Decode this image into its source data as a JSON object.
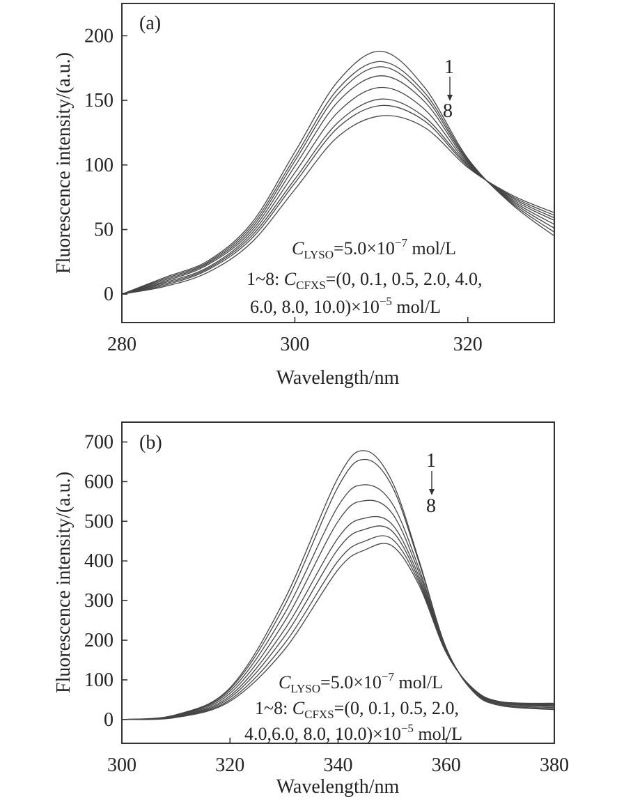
{
  "chart_data": [
    {
      "type": "line",
      "panel_label": "(a)",
      "xlabel": "Wavelength/nm",
      "ylabel": "Fluorescence intensity/(a.u.)",
      "xlim": [
        280,
        330
      ],
      "ylim": [
        -22,
        225
      ],
      "xticks": [
        280,
        300,
        320
      ],
      "yticks": [
        0,
        50,
        100,
        150,
        200
      ],
      "grid": false,
      "series_label_top": "1",
      "series_label_bottom": "8",
      "annotation": {
        "line1": {
          "main": "C",
          "sub": "LYSO",
          "text": "=5.0×10",
          "sup": "−7",
          "unit": " mol/L"
        },
        "line2": {
          "prefix": "1~8: ",
          "main": "C",
          "sub": "CFXS",
          "text": "=(0, 0.1, 0.5, 2.0, 4.0,"
        },
        "line3": {
          "text": "6.0, 8.0, 10.0)×10",
          "sup": "−5",
          "unit": " mol/L"
        }
      },
      "series": [
        {
          "values": [
            [
              280,
              0
            ],
            [
              285,
              13
            ],
            [
              290,
              26
            ],
            [
              295,
              55
            ],
            [
              300,
              110
            ],
            [
              305,
              165
            ],
            [
              310,
              188
            ],
            [
              315,
              160
            ],
            [
              320,
              105
            ],
            [
              325,
              70
            ],
            [
              330,
              45
            ]
          ]
        },
        {
          "values": [
            [
              280,
              0
            ],
            [
              285,
              12
            ],
            [
              290,
              25
            ],
            [
              295,
              53
            ],
            [
              300,
              106
            ],
            [
              305,
              159
            ],
            [
              310,
              180
            ],
            [
              315,
              156
            ],
            [
              320,
              104
            ],
            [
              325,
              71
            ],
            [
              330,
              48
            ]
          ]
        },
        {
          "values": [
            [
              280,
              0
            ],
            [
              285,
              11
            ],
            [
              290,
              24
            ],
            [
              295,
              51
            ],
            [
              300,
              103
            ],
            [
              305,
              155
            ],
            [
              310,
              176
            ],
            [
              315,
              153
            ],
            [
              320,
              103
            ],
            [
              325,
              72
            ],
            [
              330,
              51
            ]
          ]
        },
        {
          "values": [
            [
              280,
              0
            ],
            [
              285,
              10
            ],
            [
              290,
              23
            ],
            [
              295,
              49
            ],
            [
              300,
              99
            ],
            [
              305,
              149
            ],
            [
              310,
              169
            ],
            [
              315,
              149
            ],
            [
              320,
              102
            ],
            [
              325,
              73
            ],
            [
              330,
              54
            ]
          ]
        },
        {
          "values": [
            [
              280,
              0
            ],
            [
              285,
              9
            ],
            [
              290,
              21
            ],
            [
              295,
              47
            ],
            [
              300,
              94
            ],
            [
              305,
              141
            ],
            [
              310,
              160
            ],
            [
              315,
              143
            ],
            [
              320,
              101
            ],
            [
              325,
              74
            ],
            [
              330,
              57
            ]
          ]
        },
        {
          "values": [
            [
              280,
              0
            ],
            [
              285,
              8
            ],
            [
              290,
              20
            ],
            [
              295,
              45
            ],
            [
              300,
              89
            ],
            [
              305,
              133
            ],
            [
              310,
              151
            ],
            [
              315,
              137
            ],
            [
              320,
              100
            ],
            [
              325,
              75
            ],
            [
              330,
              59
            ]
          ]
        },
        {
          "values": [
            [
              280,
              0
            ],
            [
              285,
              7
            ],
            [
              290,
              19
            ],
            [
              295,
              43
            ],
            [
              300,
              86
            ],
            [
              305,
              129
            ],
            [
              310,
              146
            ],
            [
              315,
              134
            ],
            [
              320,
              99
            ],
            [
              325,
              76
            ],
            [
              330,
              61
            ]
          ]
        },
        {
          "values": [
            [
              280,
              0
            ],
            [
              285,
              6
            ],
            [
              290,
              17
            ],
            [
              295,
              40
            ],
            [
              300,
              81
            ],
            [
              305,
              122
            ],
            [
              310,
              138
            ],
            [
              315,
              129
            ],
            [
              320,
              98
            ],
            [
              325,
              77
            ],
            [
              330,
              63
            ]
          ]
        }
      ]
    },
    {
      "type": "line",
      "panel_label": "(b)",
      "xlabel": "Wavelength/nm",
      "ylabel": "Fluorescence intensity/(a.u.)",
      "xlim": [
        300,
        380
      ],
      "ylim": [
        -60,
        750
      ],
      "xticks": [
        300,
        320,
        340,
        360,
        380
      ],
      "yticks": [
        0,
        100,
        200,
        300,
        400,
        500,
        600,
        700
      ],
      "grid": false,
      "series_label_top": "1",
      "series_label_bottom": "8",
      "annotation": {
        "line1": {
          "main": "C",
          "sub": "LYSO",
          "text": "=5.0×10",
          "sup": "−7",
          "unit": " mol/L"
        },
        "line2": {
          "prefix": "1~8: ",
          "main": "C",
          "sub": "CFXS",
          "text": "=(0, 0.1, 0.5, 2.0,"
        },
        "line3": {
          "text": "4.0,6.0, 8.0, 10.0)×10",
          "sup": "−5",
          "unit": " mol/L"
        }
      },
      "series": [
        {
          "values": [
            [
              300,
              0
            ],
            [
              310,
              12
            ],
            [
              320,
              80
            ],
            [
              330,
              300
            ],
            [
              340,
              610
            ],
            [
              345,
              678
            ],
            [
              350,
              600
            ],
            [
              355,
              400
            ],
            [
              360,
              180
            ],
            [
              365,
              70
            ],
            [
              370,
              35
            ],
            [
              380,
              25
            ]
          ]
        },
        {
          "values": [
            [
              300,
              0
            ],
            [
              310,
              11
            ],
            [
              320,
              77
            ],
            [
              330,
              285
            ],
            [
              340,
              587
            ],
            [
              345,
              656
            ],
            [
              350,
              588
            ],
            [
              355,
              395
            ],
            [
              360,
              180
            ],
            [
              365,
              72
            ],
            [
              370,
              37
            ],
            [
              380,
              27
            ]
          ]
        },
        {
          "values": [
            [
              300,
              0
            ],
            [
              310,
              10
            ],
            [
              320,
              72
            ],
            [
              330,
              265
            ],
            [
              340,
              538
            ],
            [
              345,
              592
            ],
            [
              350,
              545
            ],
            [
              355,
              380
            ],
            [
              360,
              178
            ],
            [
              365,
              73
            ],
            [
              370,
              39
            ],
            [
              380,
              30
            ]
          ]
        },
        {
          "values": [
            [
              300,
              0
            ],
            [
              310,
              9
            ],
            [
              320,
              66
            ],
            [
              330,
              245
            ],
            [
              340,
              500
            ],
            [
              345,
              552
            ],
            [
              350,
              520
            ],
            [
              355,
              370
            ],
            [
              360,
              176
            ],
            [
              365,
              74
            ],
            [
              370,
              41
            ],
            [
              380,
              33
            ]
          ]
        },
        {
          "values": [
            [
              300,
              0
            ],
            [
              310,
              8
            ],
            [
              320,
              60
            ],
            [
              330,
              225
            ],
            [
              340,
              458
            ],
            [
              345,
              508
            ],
            [
              350,
              492
            ],
            [
              355,
              360
            ],
            [
              360,
              174
            ],
            [
              365,
              75
            ],
            [
              370,
              42
            ],
            [
              380,
              35
            ]
          ]
        },
        {
          "values": [
            [
              300,
              0
            ],
            [
              310,
              7
            ],
            [
              320,
              55
            ],
            [
              330,
              208
            ],
            [
              340,
              430
            ],
            [
              345,
              480
            ],
            [
              350,
              475
            ],
            [
              355,
              352
            ],
            [
              360,
              172
            ],
            [
              365,
              76
            ],
            [
              370,
              43
            ],
            [
              380,
              37
            ]
          ]
        },
        {
          "values": [
            [
              300,
              0
            ],
            [
              310,
              6
            ],
            [
              320,
              50
            ],
            [
              330,
              190
            ],
            [
              340,
              400
            ],
            [
              345,
              450
            ],
            [
              350,
              455
            ],
            [
              355,
              345
            ],
            [
              360,
              170
            ],
            [
              365,
              77
            ],
            [
              370,
              44
            ],
            [
              380,
              39
            ]
          ]
        },
        {
          "values": [
            [
              300,
              0
            ],
            [
              310,
              5
            ],
            [
              320,
              46
            ],
            [
              330,
              175
            ],
            [
              340,
              378
            ],
            [
              345,
              428
            ],
            [
              350,
              438
            ],
            [
              355,
              338
            ],
            [
              360,
              168
            ],
            [
              365,
              78
            ],
            [
              370,
              45
            ],
            [
              380,
              41
            ]
          ]
        }
      ]
    }
  ]
}
